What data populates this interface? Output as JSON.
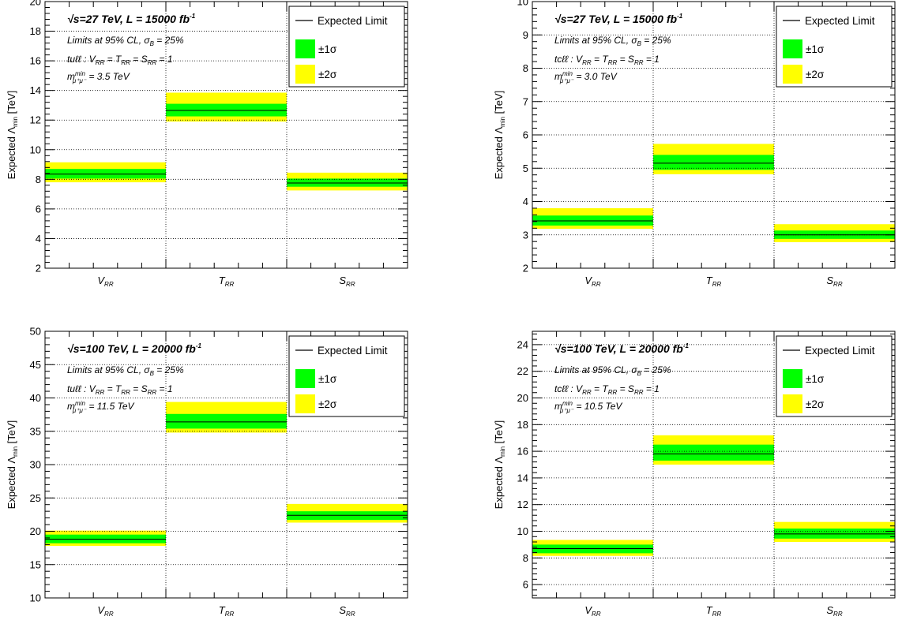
{
  "chart_data": [
    {
      "type": "bar",
      "title": "√s=27 TeV, L = 15000 fb⁻¹",
      "header": {
        "energy": "s=27 TeV, L = 15000 fb",
        "lumi_exp": "-1"
      },
      "info_lines": {
        "cl": "Limits at 95% CL, σ",
        "cl_sub": "B",
        "cl_tail": " = 25%",
        "channel": "tuℓℓ : V",
        "channel_rest": " = T",
        "channel_rest2": " = S",
        "channel_tail": " = 1",
        "mass_label": "m",
        "mass_sup": "min",
        "mass_sub": "μ⁺μ⁻",
        "mass_value": " = 3.5 TeV"
      },
      "ylabel": "Expected Λ",
      "ylabel_sub": "min",
      "ylabel_unit": " [TeV]",
      "ylim": [
        2,
        20
      ],
      "yticks": [
        2,
        4,
        6,
        8,
        10,
        12,
        14,
        16,
        18,
        20
      ],
      "categories": [
        "V",
        "T",
        "S"
      ],
      "category_sub": "RR",
      "series": [
        {
          "name": "Expected Limit",
          "values": [
            8.35,
            12.65,
            7.75
          ]
        },
        {
          "name": "±1σ",
          "low": [
            8.05,
            12.25,
            7.5
          ],
          "high": [
            8.7,
            13.1,
            8.05
          ]
        },
        {
          "name": "±2σ",
          "low": [
            7.8,
            11.9,
            7.25
          ],
          "high": [
            9.15,
            13.85,
            8.45
          ]
        }
      ],
      "grid": true,
      "legend_position": "top-right"
    },
    {
      "type": "bar",
      "title": "√s=27 TeV, L = 15000 fb⁻¹",
      "header": {
        "energy": "s=27 TeV, L = 15000 fb",
        "lumi_exp": "-1"
      },
      "info_lines": {
        "cl": "Limits at 95% CL, σ",
        "cl_sub": "B",
        "cl_tail": " = 25%",
        "channel": "tcℓℓ : V",
        "channel_rest": " = T",
        "channel_rest2": " = S",
        "channel_tail": " = 1",
        "mass_label": "m",
        "mass_sup": "min",
        "mass_sub": "μ⁺μ⁻",
        "mass_value": " = 3.0 TeV"
      },
      "ylabel": "Expected Λ",
      "ylabel_sub": "min",
      "ylabel_unit": " [TeV]",
      "ylim": [
        2,
        10
      ],
      "yticks": [
        2,
        3,
        4,
        5,
        6,
        7,
        8,
        9,
        10
      ],
      "categories": [
        "V",
        "T",
        "S"
      ],
      "category_sub": "RR",
      "series": [
        {
          "name": "Expected Limit",
          "values": [
            3.42,
            5.15,
            3.0
          ]
        },
        {
          "name": "±1σ",
          "low": [
            3.28,
            4.95,
            2.88
          ],
          "high": [
            3.58,
            5.4,
            3.13
          ]
        },
        {
          "name": "±2σ",
          "low": [
            3.18,
            4.82,
            2.78
          ],
          "high": [
            3.8,
            5.73,
            3.32
          ]
        }
      ],
      "grid": true,
      "legend_position": "top-right"
    },
    {
      "type": "bar",
      "title": "√s=100 TeV, L = 20000 fb⁻¹",
      "header": {
        "energy": "s=100 TeV, L = 20000 fb",
        "lumi_exp": "-1"
      },
      "info_lines": {
        "cl": "Limits at 95% CL, σ",
        "cl_sub": "B",
        "cl_tail": " = 25%",
        "channel": "tuℓℓ : V",
        "channel_rest": " = T",
        "channel_rest2": " = S",
        "channel_tail": " = 1",
        "mass_label": "m",
        "mass_sup": "min",
        "mass_sub": "μ⁺μ⁻",
        "mass_value": " = 11.5 TeV"
      },
      "ylabel": "Expected Λ",
      "ylabel_sub": "min",
      "ylabel_unit": " [TeV]",
      "ylim": [
        10,
        50
      ],
      "yticks": [
        10,
        15,
        20,
        25,
        30,
        35,
        40,
        45,
        50
      ],
      "categories": [
        "V",
        "T",
        "S"
      ],
      "category_sub": "RR",
      "series": [
        {
          "name": "Expected Limit",
          "values": [
            18.8,
            36.4,
            22.4
          ]
        },
        {
          "name": "±1σ",
          "low": [
            18.2,
            35.4,
            21.7
          ],
          "high": [
            19.5,
            37.6,
            23.0
          ]
        },
        {
          "name": "±2σ",
          "low": [
            17.8,
            34.8,
            21.3
          ],
          "high": [
            20.1,
            39.4,
            24.1
          ]
        }
      ],
      "grid": true,
      "legend_position": "top-right"
    },
    {
      "type": "bar",
      "title": "√s=100 TeV, L = 20000 fb⁻¹",
      "header": {
        "energy": "s=100 TeV, L = 20000 fb",
        "lumi_exp": "-1"
      },
      "info_lines": {
        "cl": "Limits at 95% CL, σ",
        "cl_sub": "B",
        "cl_tail": " = 25%",
        "channel": "tcℓℓ : V",
        "channel_rest": " = T",
        "channel_rest2": " = S",
        "channel_tail": " = 1",
        "mass_label": "m",
        "mass_sup": "min",
        "mass_sub": "μ⁺μ⁻",
        "mass_value": " = 10.5 TeV"
      },
      "ylabel": "Expected Λ",
      "ylabel_sub": "min",
      "ylabel_unit": " [TeV]",
      "ylim": [
        5,
        25
      ],
      "yticks": [
        6,
        8,
        10,
        12,
        14,
        16,
        18,
        20,
        22,
        24
      ],
      "categories": [
        "V",
        "T",
        "S"
      ],
      "category_sub": "RR",
      "series": [
        {
          "name": "Expected Limit",
          "values": [
            8.7,
            15.8,
            9.8
          ]
        },
        {
          "name": "±1σ",
          "low": [
            8.35,
            15.3,
            9.45
          ],
          "high": [
            9.0,
            16.5,
            10.2
          ]
        },
        {
          "name": "±2σ",
          "low": [
            8.15,
            15.0,
            9.2
          ],
          "high": [
            9.35,
            17.2,
            10.7
          ]
        }
      ],
      "grid": true,
      "legend_position": "top-right"
    }
  ],
  "colors": {
    "band_1sigma": "#00ff00",
    "band_2sigma": "#ffff00",
    "line": "#000000",
    "grid": "#000000"
  }
}
